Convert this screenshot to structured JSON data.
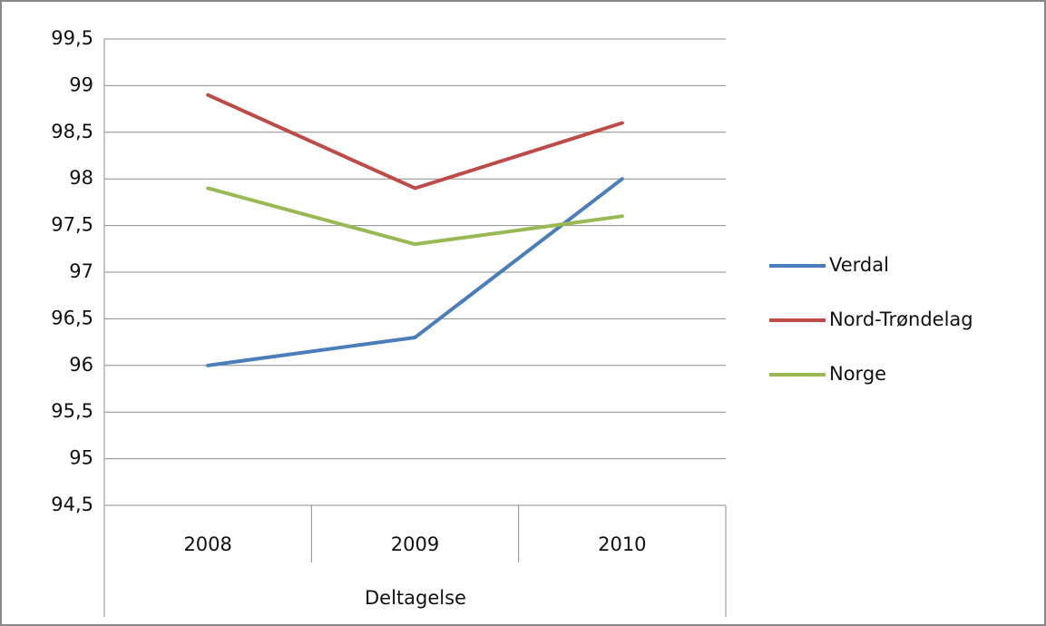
{
  "chart_data": {
    "type": "line",
    "categories": [
      "2008",
      "2009",
      "2010"
    ],
    "x_group_label": "Deltagelse",
    "series": [
      {
        "name": "Verdal",
        "color": "#4a7ebb",
        "values": [
          96.0,
          96.3,
          98.0
        ]
      },
      {
        "name": "Nord-Trøndelag",
        "color": "#be4b48",
        "values": [
          98.9,
          97.9,
          98.6
        ]
      },
      {
        "name": "Norge",
        "color": "#98b954",
        "values": [
          97.9,
          97.3,
          97.6
        ]
      }
    ],
    "ylim": [
      94.5,
      99.5
    ],
    "yticks": [
      {
        "value": 94.5,
        "label": "94,5"
      },
      95,
      {
        "value": 95.5,
        "label": "95,5"
      },
      96,
      {
        "value": 96.5,
        "label": "96,5"
      },
      97,
      {
        "value": 97.5,
        "label": "97,5"
      },
      98,
      {
        "value": 98.5,
        "label": "98,5"
      },
      99,
      {
        "value": 99.5,
        "label": "99,5"
      }
    ],
    "grid": true,
    "legend": "right"
  }
}
